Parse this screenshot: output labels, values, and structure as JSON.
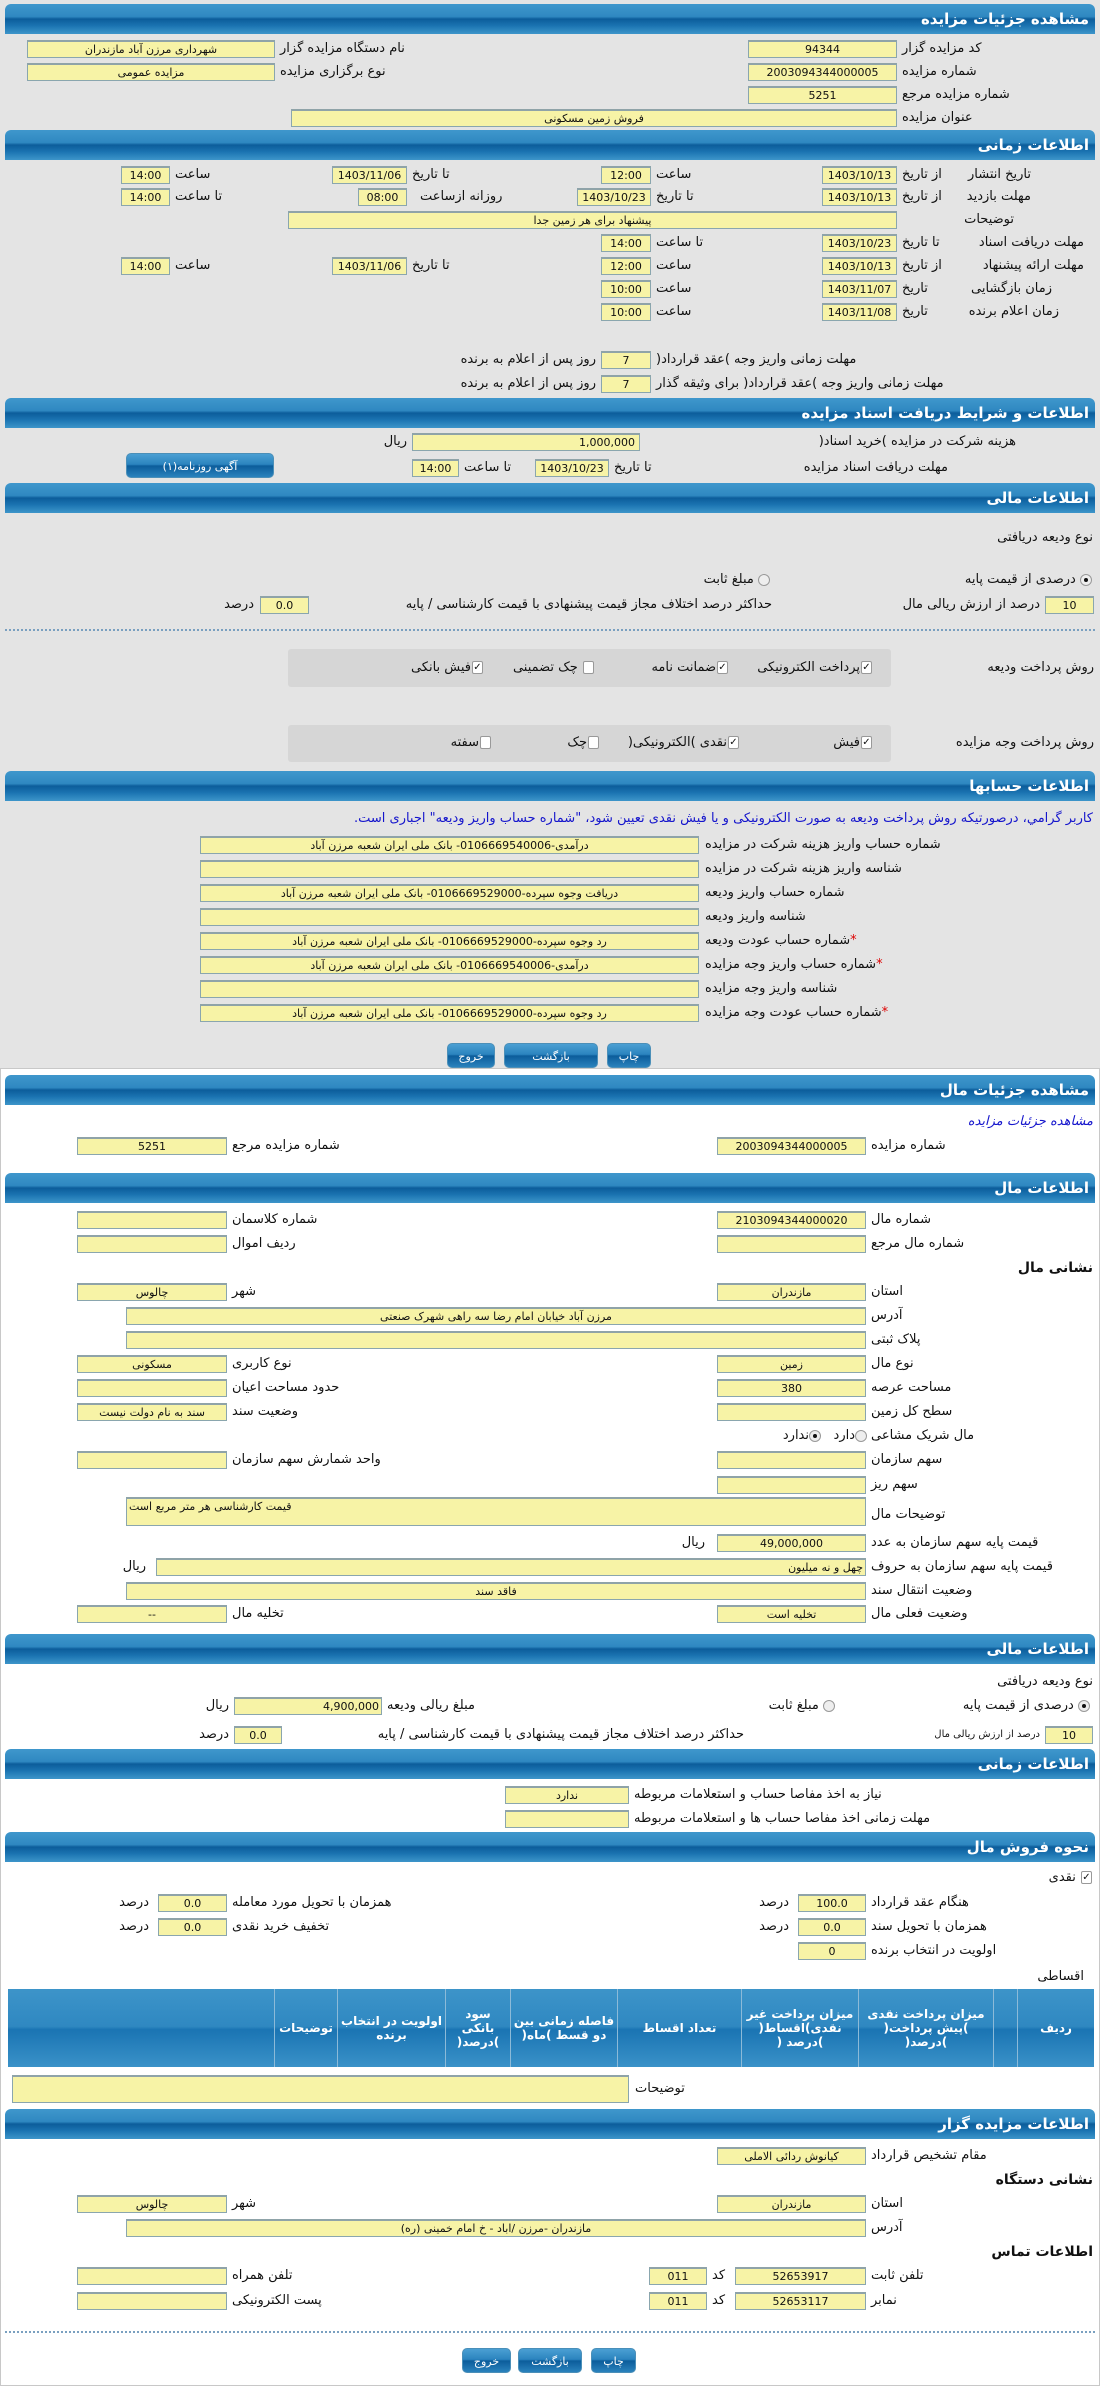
{
  "auction": {
    "title": "مشاهده جزئیات مزایده",
    "code_label": "کد مزایده گزار",
    "code": "94344",
    "org_label": "نام دستگاه مزایده گزار",
    "org": "شهرداری مرزن آباد  مازندران",
    "num_label": "شماره مزایده",
    "num": "2003094344000005",
    "type_label": "نوع برگزاری مزایده",
    "type": "مزایده عمومی",
    "ref_label": "شماره مزایده مرجع",
    "ref": "5251",
    "subject_label": "عنوان مزایده",
    "subject": "فروش زمین مسکونی"
  },
  "time": {
    "title": "اطلاعات زمانی",
    "from_date": "از تاریخ",
    "to_date": "تا تاریخ",
    "hour": "ساعت",
    "to_hour": "تا ساعت",
    "date": "تاریخ",
    "daily_from": "روزانه ازساعت",
    "publish_label": "تاریخ انتشار",
    "publish_from": "1403/10/13",
    "publish_from_hour": "12:00",
    "publish_to": "1403/11/06",
    "publish_to_hour": "14:00",
    "visit_label": "مهلت بازدید",
    "visit_from": "1403/10/13",
    "visit_to": "1403/10/23",
    "visit_daily_from": "08:00",
    "visit_to_hour": "14:00",
    "desc_label": "توضیحات",
    "desc": "پیشنهاد برای هر زمین جدا",
    "docs_label": "مهلت دریافت اسناد",
    "docs_to": "1403/10/23",
    "docs_to_hour": "14:00",
    "offer_label": "مهلت ارائه پیشنهاد",
    "offer_from": "1403/10/13",
    "offer_from_hour": "12:00",
    "offer_to": "1403/11/06",
    "offer_to_hour": "14:00",
    "open_label": "زمان بازگشایی",
    "open_date": "1403/11/07",
    "open_hour": "10:00",
    "winner_label": "زمان اعلام برنده",
    "winner_date": "1403/11/08",
    "winner_hour": "10:00",
    "pay_label": "مهلت زمانی واریز وجه )عقد قرارداد(",
    "pay_days": "7",
    "days_suffix": "روز پس از اعلام به برنده",
    "pay2_label": "مهلت زمانی واریز وجه )عقد قرارداد( برای وثیقه گذار",
    "pay2_days": "7"
  },
  "docs": {
    "title": "اطلاعات و شرایط دریافت اسناد مزایده",
    "fee_label": "هزینه شرکت در مزایده )خرید اسناد(",
    "fee": "1,000,000",
    "rial": "ریال",
    "deadline_label": "مهلت دریافت اسناد مزایده",
    "to_date": "تا تاریخ",
    "date": "1403/10/23",
    "to_hour": "تا ساعت",
    "hour": "14:00",
    "ad_button": "آگهی روزنامه(۱)"
  },
  "finance": {
    "title": "اطلاعات مالی",
    "deposit_type_label": "نوع ودیعه دریافتی",
    "opt_percent": "درصدی از قیمت پایه",
    "opt_fixed": "مبلغ ثابت",
    "selected": "percent",
    "percent": "10",
    "percent_label": "درصد از ارزش ریالی مال",
    "maxdiff_label": "حداکثر درصد اختلاف مجاز قیمت پیشنهادی با قیمت کارشناسی / پایه",
    "maxdiff": "0.0",
    "percent_unit": "درصد",
    "deposit_method_label": "روش پرداخت ودیعه",
    "deposit_methods": [
      {
        "label": "پرداخت الکترونیکی",
        "checked": true
      },
      {
        "label": "ضمانت نامه",
        "checked": true
      },
      {
        "label": "چک تضمینی",
        "checked": false
      },
      {
        "label": "فیش بانکی",
        "checked": true
      }
    ],
    "payment_method_label": "روش پرداخت وجه مزایده",
    "payment_methods": [
      {
        "label": "فیش",
        "checked": true
      },
      {
        "label": "نقدی )الکترونیکی(",
        "checked": true
      },
      {
        "label": "چک",
        "checked": false
      },
      {
        "label": "سفته",
        "checked": false
      }
    ]
  },
  "accounts": {
    "title": "اطلاعات حسابها",
    "notice": "کاربر گرامي، درصورتيکه روش پرداخت وديعه به صورت الکترونيکی و يا فيش نقدی تعيين شود، \"شماره حساب واریز ودیعه\" اجباری است.",
    "rows": [
      {
        "label": "شماره حساب واریز هزینه شرکت در مزایده",
        "value": "درآمدی-0106669540006- بانک ملی ایران شعبه مرزن آباد",
        "required": false
      },
      {
        "label": "شناسه واریز هزینه شرکت در مزایده",
        "value": "",
        "required": false
      },
      {
        "label": "شماره حساب واریز ودیعه",
        "value": "دریافت وجوه سپرده-0106669529000- بانک ملی ایران شعبه مرزن آباد",
        "required": false
      },
      {
        "label": "شناسه واریز ودیعه",
        "value": "",
        "required": false
      },
      {
        "label": "شماره حساب عودت ودیعه",
        "value": "رد وجوه سپرده-0106669529000- بانک ملی ایران شعبه مرزن آباد",
        "required": true
      },
      {
        "label": "شماره حساب واریز وجه مزایده",
        "value": "درآمدی-0106669540006- بانک ملی ایران شعبه مرزن آباد",
        "required": true
      },
      {
        "label": "شناسه واریز وجه مزایده",
        "value": "",
        "required": false
      },
      {
        "label": "شماره حساب عودت وجه مزایده",
        "value": "رد وجوه سپرده-0106669529000- بانک ملی ایران شعبه مرزن آباد",
        "required": true
      }
    ],
    "required_mark": "*"
  },
  "buttons": {
    "print": "چاپ",
    "back": "بازگشت",
    "exit": "خروج"
  },
  "item": {
    "title": "مشاهده جزئیات مال",
    "link": "مشاهده جزئیات مزایده",
    "num_label": "شماره مزایده",
    "num": "2003094344000005",
    "ref_label": "شماره مزایده مرجع",
    "ref": "5251",
    "info_title": "اطلاعات مال",
    "item_no_label": "شماره مال",
    "item_no": "2103094344000020",
    "class_label": "شماره کلاسمان",
    "class_no": "",
    "item_ref_label": "شماره مال مرجع",
    "item_ref": "",
    "row_label": "ردیف اموال",
    "row": "",
    "address_title": "نشانی مال",
    "province_label": "استان",
    "province": "مازندران",
    "city_label": "شهر",
    "city": "چالوس",
    "address_label": "آدرس",
    "address": "مرزن آباد خیابان امام رضا سه راهی شهرک صنعتی",
    "plate_label": "پلاک ثبتی",
    "plate": "",
    "kind_label": "نوع مال",
    "kind": "زمین",
    "usage_label": "نوع کاربری",
    "usage": "مسکونی",
    "area_label": "مساحت عرصه",
    "area": "380",
    "building_label": "حدود مساحت اعیان",
    "building": "",
    "land_label": "سطح کل زمین",
    "land": "",
    "deed_label": "وضعیت سند",
    "deed": "سند به نام دولت نیست",
    "shared_label": "مال شریک مشاعی",
    "shared_yes": "دارد",
    "shared_no": "ندارد",
    "shared": "no",
    "share_label": "سهم سازمان",
    "share": "",
    "share_unit_label": "واحد شمارش سهم سازمان",
    "share_unit": "",
    "micro_label": "سهم ریز",
    "micro": "",
    "desc_label": "توضیحات مال",
    "desc": "قیمت کارشناسی هر متر مربع است",
    "price_label": "قیمت پایه سهم سازمان به عدد",
    "price": "49,000,000",
    "rial": "ریال",
    "price_words_label": "قیمت پایه سهم سازمان به حروف",
    "price_words": "چهل و نه میلیون",
    "transfer_label": "وضعیت انتقال سند",
    "transfer": "فاقد سند",
    "status_label": "وضعیت فعلی مال",
    "status": "تخلیه است",
    "evac_label": "تخلیه مال",
    "evac": "--"
  },
  "item_finance": {
    "title": "اطلاعات مالی",
    "deposit_type_label": "نوع ودیعه دریافتی",
    "opt_percent": "درصدی از قیمت پایه",
    "opt_fixed": "مبلغ ثابت",
    "selected": "percent",
    "amount_label": "مبلغ ریالی ودیعه",
    "amount": "4,900,000",
    "rial": "ریال",
    "percent": "10",
    "percent_label": "درصد از ارزش ریالی مال",
    "maxdiff_label": "حداکثر درصد اختلاف مجاز قیمت پیشنهادی با قیمت کارشناسی / پایه",
    "maxdiff": "0.0",
    "percent_unit": "درصد"
  },
  "item_time": {
    "title": "اطلاعات زمانی",
    "clear_label": "نیاز به اخذ مفاصا حساب و استعلامات مربوطه",
    "clear": "ندارد",
    "clear_deadline_label": "مهلت زمانی اخذ مفاصا حساب ها و استعلامات مربوطه",
    "clear_deadline": ""
  },
  "sale": {
    "title": "نحوه فروش مال",
    "cash_label": "نقدی",
    "cash_checked": true,
    "contract_label": "هنگام عقد قرارداد",
    "contract": "100.0",
    "deed_label": "همزمان با تحویل سند",
    "deed": "0.0",
    "priority_label": "اولویت در انتخاب برنده",
    "priority": "0",
    "delivery_label": "همزمان با تحویل مورد معامله",
    "delivery": "0.0",
    "discount_label": "تخفیف خرید نقدی",
    "discount": "0.0",
    "percent_unit": "درصد",
    "installment_label": "اقساطی",
    "columns": [
      "ردیف",
      "",
      "میزان پرداخت نقدی )پیش پرداخت( )درصد(",
      "میزان پرداخت غیر نقدی)اقساط( )درصد (",
      "تعداد اقساط",
      "فاصله زمانی بین دو قسط )ماه(",
      "سود بانکی )درصد(",
      "اولویت در انتخاب برنده",
      "توضیحات",
      ""
    ],
    "notes_label": "توضیحات",
    "notes": ""
  },
  "seller": {
    "title": "اطلاعات مزایده گزار",
    "authority_label": "مقام تشخیص قرارداد",
    "authority": "کیانوش ردائی الاملی",
    "address_title": "نشانی دستگاه",
    "province_label": "استان",
    "province": "مازندران",
    "city_label": "شهر",
    "city": "چالوس",
    "address_label": "آدرس",
    "address": "مازندران -مرزن /اباد - خ امام خمینی (ره)",
    "contact_title": "اطلاعات تماس",
    "phone_label": "تلفن ثابت",
    "phone": "52653917",
    "code_label": "کد",
    "phone_code": "011",
    "fax_label": "نمابر",
    "fax": "52653117",
    "fax_code": "011",
    "mobile_label": "تلفن همراه",
    "mobile": "",
    "email_label": "پست الکترونیکی",
    "email": ""
  },
  "colors": {
    "header": "#0c5d9b",
    "field": "#f7f3a6",
    "link": "#1515cc",
    "required": "#dd0000"
  }
}
